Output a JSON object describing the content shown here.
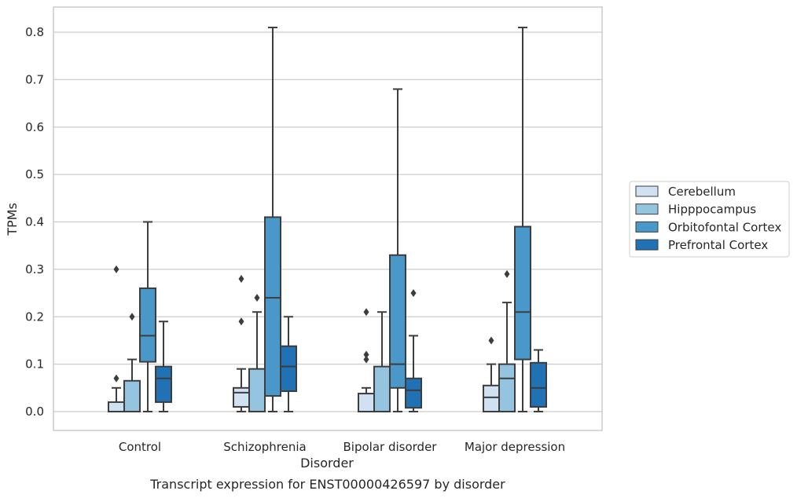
{
  "chart_data": {
    "type": "box",
    "caption": "Transcript expression for ENST00000426597 by disorder",
    "xlabel": "Disorder",
    "ylabel": "TPMs",
    "ylim": [
      -0.04,
      0.85
    ],
    "yticks": [
      "0.0",
      "0.1",
      "0.2",
      "0.3",
      "0.4",
      "0.5",
      "0.6",
      "0.7",
      "0.8"
    ],
    "grid": "horizontal",
    "legend_position": "right",
    "categories": [
      "Control",
      "Schizophrenia",
      "Bipolar disorder",
      "Major depression"
    ],
    "series": [
      {
        "name": "Cerebellum",
        "color": "#d0e1f2",
        "boxes": [
          {
            "whisker_low": 0.0,
            "q1": 0.0,
            "median": 0.0,
            "q3": 0.02,
            "whisker_high": 0.05,
            "outliers": [
              0.07,
              0.3
            ]
          },
          {
            "whisker_low": 0.0,
            "q1": 0.01,
            "median": 0.04,
            "q3": 0.05,
            "whisker_high": 0.09,
            "outliers": [
              0.19,
              0.28
            ]
          },
          {
            "whisker_low": 0.0,
            "q1": 0.0,
            "median": 0.0,
            "q3": 0.038,
            "whisker_high": 0.05,
            "outliers": [
              0.11,
              0.12,
              0.21
            ]
          },
          {
            "whisker_low": 0.0,
            "q1": 0.0,
            "median": 0.03,
            "q3": 0.055,
            "whisker_high": 0.1,
            "outliers": [
              0.15
            ]
          }
        ]
      },
      {
        "name": "Hipppocampus",
        "color": "#94c4df",
        "boxes": [
          {
            "whisker_low": 0.0,
            "q1": 0.0,
            "median": 0.0,
            "q3": 0.065,
            "whisker_high": 0.11,
            "outliers": [
              0.2
            ]
          },
          {
            "whisker_low": 0.0,
            "q1": 0.0,
            "median": 0.0,
            "q3": 0.09,
            "whisker_high": 0.21,
            "outliers": [
              0.24
            ]
          },
          {
            "whisker_low": 0.0,
            "q1": 0.0,
            "median": 0.0,
            "q3": 0.095,
            "whisker_high": 0.21,
            "outliers": []
          },
          {
            "whisker_low": 0.0,
            "q1": 0.0,
            "median": 0.07,
            "q3": 0.1,
            "whisker_high": 0.23,
            "outliers": [
              0.29
            ]
          }
        ]
      },
      {
        "name": "Orbitofontal Cortex",
        "color": "#4a98c9",
        "boxes": [
          {
            "whisker_low": 0.0,
            "q1": 0.105,
            "median": 0.16,
            "q3": 0.26,
            "whisker_high": 0.4,
            "outliers": []
          },
          {
            "whisker_low": 0.0,
            "q1": 0.033,
            "median": 0.24,
            "q3": 0.41,
            "whisker_high": 0.81,
            "outliers": []
          },
          {
            "whisker_low": 0.0,
            "q1": 0.05,
            "median": 0.1,
            "q3": 0.33,
            "whisker_high": 0.68,
            "outliers": []
          },
          {
            "whisker_low": 0.0,
            "q1": 0.11,
            "median": 0.21,
            "q3": 0.39,
            "whisker_high": 0.81,
            "outliers": []
          }
        ]
      },
      {
        "name": "Prefrontal Cortex",
        "color": "#2171b5",
        "boxes": [
          {
            "whisker_low": 0.0,
            "q1": 0.02,
            "median": 0.07,
            "q3": 0.095,
            "whisker_high": 0.19,
            "outliers": []
          },
          {
            "whisker_low": 0.0,
            "q1": 0.043,
            "median": 0.095,
            "q3": 0.138,
            "whisker_high": 0.2,
            "outliers": []
          },
          {
            "whisker_low": 0.0,
            "q1": 0.008,
            "median": 0.045,
            "q3": 0.07,
            "whisker_high": 0.16,
            "outliers": [
              0.25
            ]
          },
          {
            "whisker_low": 0.0,
            "q1": 0.01,
            "median": 0.05,
            "q3": 0.103,
            "whisker_high": 0.13,
            "outliers": []
          }
        ]
      }
    ]
  }
}
